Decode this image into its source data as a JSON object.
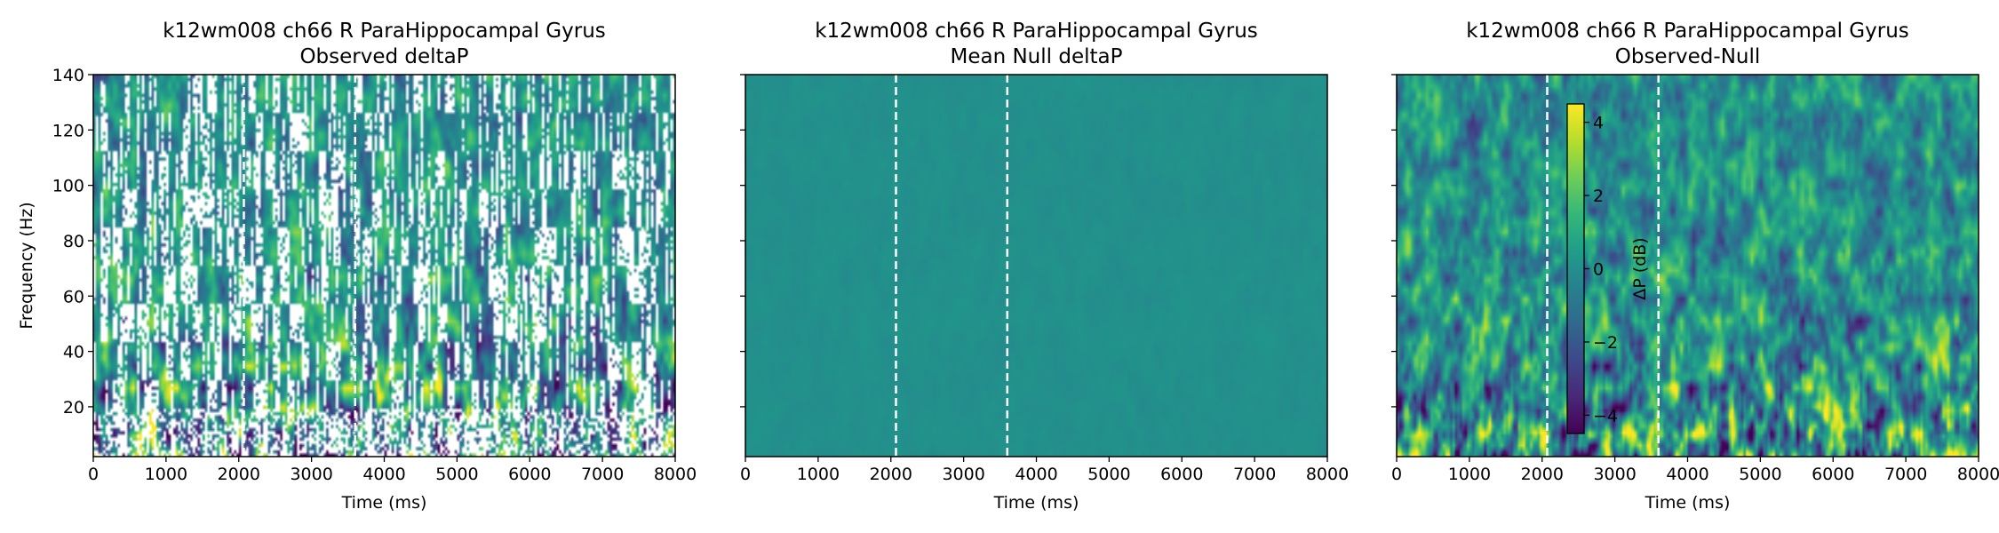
{
  "colormap": {
    "name": "viridis",
    "stops": [
      "#440154",
      "#482878",
      "#3e4989",
      "#31688e",
      "#26828e",
      "#1f9e89",
      "#35b779",
      "#6ece58",
      "#b5de2b",
      "#fde725"
    ]
  },
  "chart_data": [
    {
      "type": "heatmap",
      "title": "k12wm008 ch66 R ParaHippocampal Gyrus",
      "subtitle": "Observed deltaP",
      "xlabel": "Time (ms)",
      "ylabel": "Frequency (Hz)",
      "xlim": [
        0,
        8000
      ],
      "ylim": [
        2,
        140
      ],
      "xticks": [
        0,
        1000,
        2000,
        3000,
        4000,
        5000,
        6000,
        7000,
        8000
      ],
      "yticks": [
        20,
        40,
        60,
        80,
        100,
        120,
        140
      ],
      "event_lines_ms": [
        2070,
        3600
      ],
      "value_range": [
        -4.5,
        4.5
      ],
      "masked": true
    },
    {
      "type": "heatmap",
      "title": "k12wm008 ch66 R ParaHippocampal Gyrus",
      "subtitle": "Mean Null deltaP",
      "xlabel": "Time (ms)",
      "xlim": [
        0,
        8000
      ],
      "ylim": [
        2,
        140
      ],
      "xticks": [
        0,
        1000,
        2000,
        3000,
        4000,
        5000,
        6000,
        7000,
        8000
      ],
      "yticks": [
        20,
        40,
        60,
        80,
        100,
        120,
        140
      ],
      "event_lines_ms": [
        2070,
        3600
      ],
      "value_range": [
        -4.5,
        4.5
      ],
      "masked": false
    },
    {
      "type": "heatmap",
      "title": "k12wm008 ch66 R ParaHippocampal Gyrus",
      "subtitle": "Observed-Null",
      "xlabel": "Time (ms)",
      "xlim": [
        0,
        8000
      ],
      "ylim": [
        2,
        140
      ],
      "xticks": [
        0,
        1000,
        2000,
        3000,
        4000,
        5000,
        6000,
        7000,
        8000
      ],
      "yticks": [
        20,
        40,
        60,
        80,
        100,
        120,
        140
      ],
      "event_lines_ms": [
        2070,
        3600
      ],
      "value_range": [
        -4.5,
        4.5
      ],
      "masked": false,
      "colorbar": {
        "label": "ΔP (dB)",
        "ticks": [
          -4,
          -2,
          0,
          2,
          4
        ],
        "tick_labels": [
          "−4",
          "−2",
          "0",
          "2",
          "4"
        ],
        "range": [
          -4.5,
          4.5
        ]
      }
    }
  ]
}
